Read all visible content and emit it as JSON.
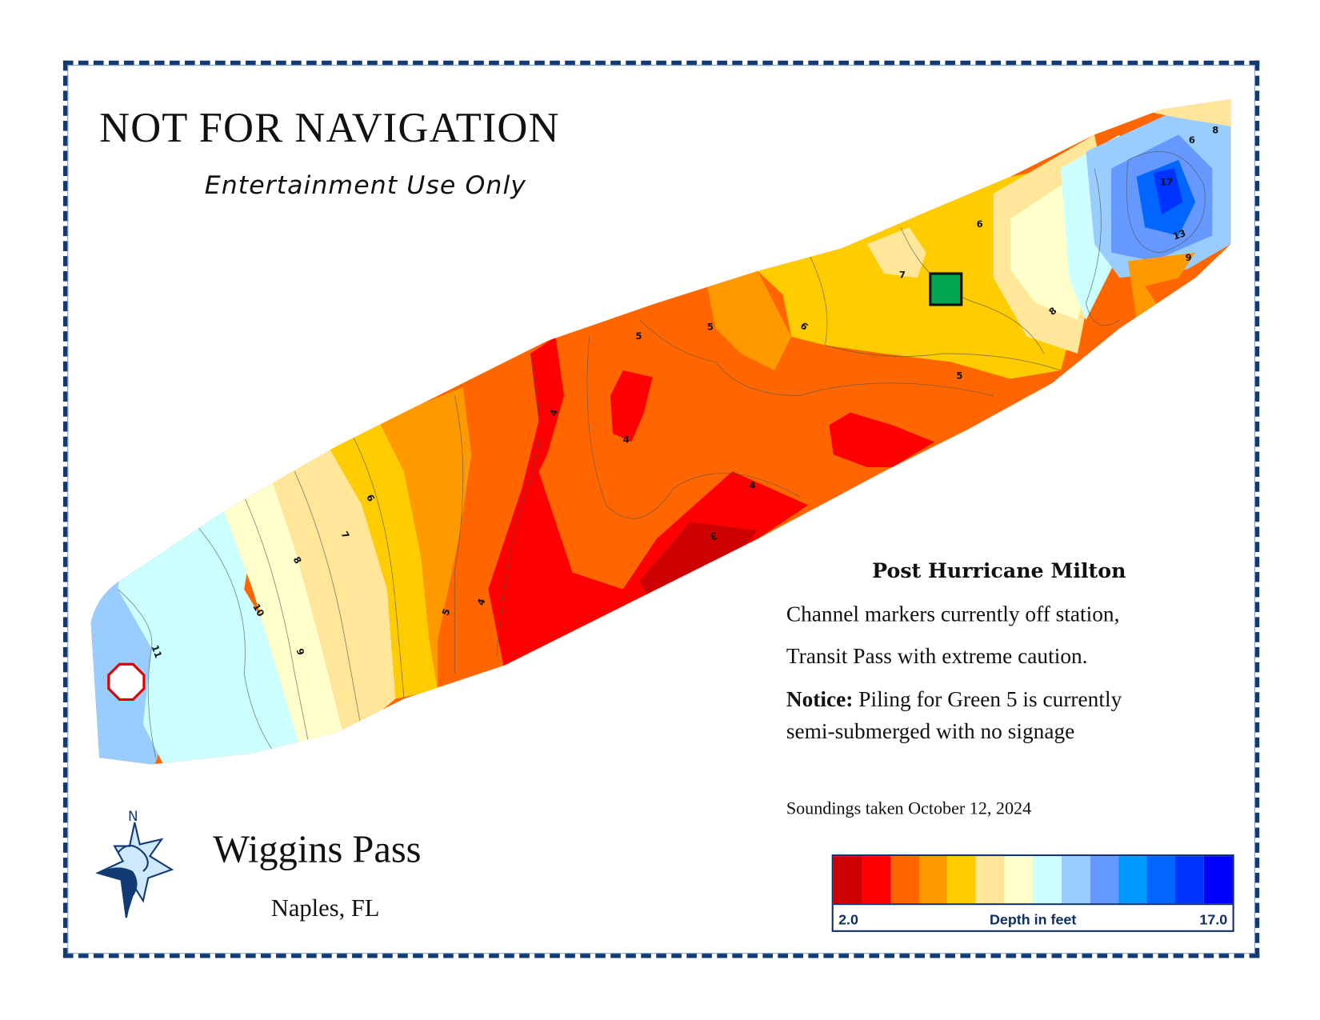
{
  "header": {
    "title": "NOT FOR NAVIGATION",
    "subtitle": "Entertainment Use Only"
  },
  "location": {
    "name": "Wiggins Pass",
    "city": "Naples, FL"
  },
  "compass": {
    "north_label": "N"
  },
  "notes": {
    "title": "Post Hurricane Milton",
    "line1": "Channel markers currently off station,",
    "line2": "Transit Pass with extreme caution.",
    "notice_label": "Notice:",
    "notice_text": " Piling for Green 5 is currently",
    "notice_text2": "semi-submerged with no signage",
    "soundings": "Soundings taken October 12, 2024"
  },
  "legend": {
    "min_label": "2.0",
    "max_label": "17.0",
    "title": "Depth in feet",
    "colors": [
      "#cc0000",
      "#ff0000",
      "#ff6600",
      "#ff9900",
      "#ffcc00",
      "#ffe699",
      "#ffffcc",
      "#ccffff",
      "#99ccff",
      "#6699ff",
      "#0099ff",
      "#0066ff",
      "#0033ff",
      "#0000ff"
    ]
  },
  "map": {
    "contour_labels": [
      "11",
      "10",
      "9",
      "8",
      "7",
      "6",
      "5",
      "4",
      "4",
      "3",
      "4",
      "4",
      "5",
      "5",
      "6",
      "6",
      "7",
      "8",
      "5",
      "6",
      "8",
      "9",
      "13",
      "17"
    ],
    "markers": {
      "green_marker_color": "#00a651",
      "red_marker_color": "#e00000"
    }
  }
}
